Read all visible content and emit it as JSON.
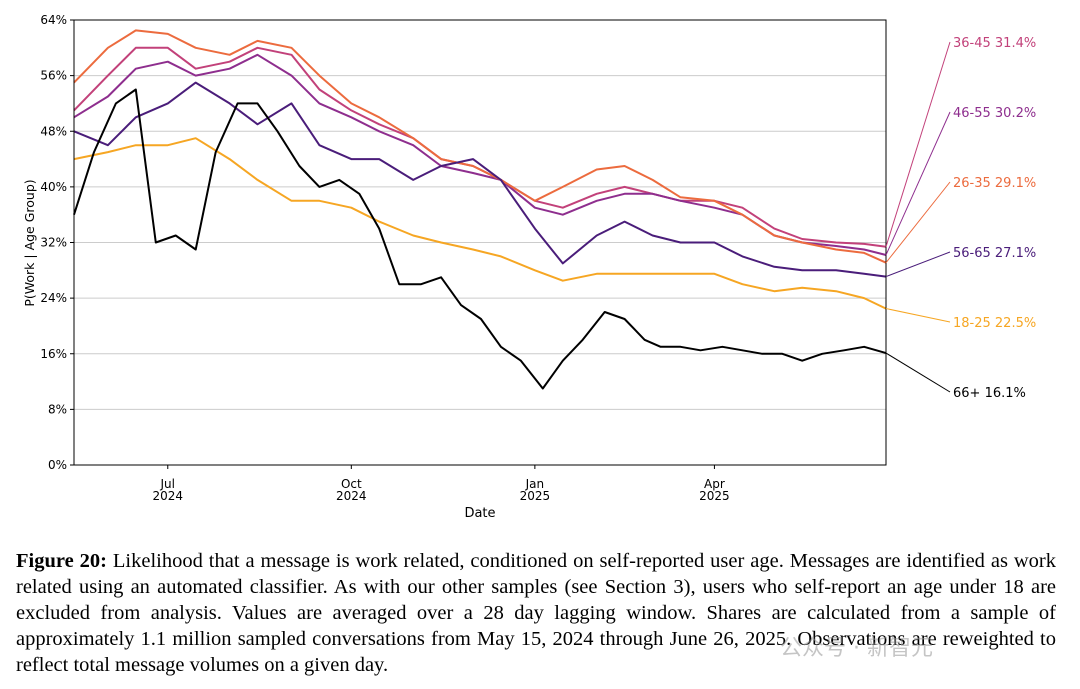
{
  "chart_data": {
    "type": "line",
    "xlabel": "Date",
    "ylabel": "P(Work | Age Group)",
    "ylim": [
      0,
      0.64
    ],
    "x_range": [
      "2024-05-15",
      "2025-06-26"
    ],
    "y_ticks": [
      0,
      0.08,
      0.16,
      0.24,
      0.32,
      0.4,
      0.48,
      0.56,
      0.64
    ],
    "y_tick_labels": [
      "0%",
      "8%",
      "16%",
      "24%",
      "32%",
      "40%",
      "48%",
      "56%",
      "64%"
    ],
    "x_ticks": [
      {
        "date": "2024-07-01",
        "line1": "Jul",
        "line2": "2024"
      },
      {
        "date": "2024-10-01",
        "line1": "Oct",
        "line2": "2024"
      },
      {
        "date": "2025-01-01",
        "line1": "Jan",
        "line2": "2025"
      },
      {
        "date": "2025-04-01",
        "line1": "Apr",
        "line2": "2025"
      }
    ],
    "grid": "horizontal",
    "legend": "right",
    "series": [
      {
        "name": "36-45",
        "end_label": "31.4%",
        "color": "#c2417a",
        "x": [
          "2024-05-15",
          "2024-06-01",
          "2024-06-15",
          "2024-07-01",
          "2024-07-15",
          "2024-08-01",
          "2024-08-15",
          "2024-09-01",
          "2024-09-15",
          "2024-10-01",
          "2024-10-15",
          "2024-11-01",
          "2024-11-15",
          "2024-12-01",
          "2024-12-15",
          "2025-01-01",
          "2025-01-15",
          "2025-02-01",
          "2025-02-15",
          "2025-03-01",
          "2025-03-15",
          "2025-04-01",
          "2025-04-15",
          "2025-05-01",
          "2025-05-15",
          "2025-06-01",
          "2025-06-15",
          "2025-06-26"
        ],
        "y": [
          0.51,
          0.56,
          0.6,
          0.6,
          0.57,
          0.58,
          0.6,
          0.59,
          0.54,
          0.51,
          0.49,
          0.47,
          0.44,
          0.43,
          0.41,
          0.38,
          0.37,
          0.39,
          0.4,
          0.39,
          0.38,
          0.38,
          0.37,
          0.34,
          0.325,
          0.32,
          0.318,
          0.314
        ]
      },
      {
        "name": "46-55",
        "end_label": "30.2%",
        "color": "#8e2e8e",
        "x": [
          "2024-05-15",
          "2024-06-01",
          "2024-06-15",
          "2024-07-01",
          "2024-07-15",
          "2024-08-01",
          "2024-08-15",
          "2024-09-01",
          "2024-09-15",
          "2024-10-01",
          "2024-10-15",
          "2024-11-01",
          "2024-11-15",
          "2024-12-01",
          "2024-12-15",
          "2025-01-01",
          "2025-01-15",
          "2025-02-01",
          "2025-02-15",
          "2025-03-01",
          "2025-03-15",
          "2025-04-01",
          "2025-04-15",
          "2025-05-01",
          "2025-05-15",
          "2025-06-01",
          "2025-06-15",
          "2025-06-26"
        ],
        "y": [
          0.5,
          0.53,
          0.57,
          0.58,
          0.56,
          0.57,
          0.59,
          0.56,
          0.52,
          0.5,
          0.48,
          0.46,
          0.43,
          0.42,
          0.41,
          0.37,
          0.36,
          0.38,
          0.39,
          0.39,
          0.38,
          0.37,
          0.36,
          0.33,
          0.32,
          0.315,
          0.31,
          0.302
        ]
      },
      {
        "name": "26-35",
        "end_label": "29.1%",
        "color": "#ec6b3e",
        "x": [
          "2024-05-15",
          "2024-06-01",
          "2024-06-15",
          "2024-07-01",
          "2024-07-15",
          "2024-08-01",
          "2024-08-15",
          "2024-09-01",
          "2024-09-15",
          "2024-10-01",
          "2024-10-15",
          "2024-11-01",
          "2024-11-15",
          "2024-12-01",
          "2024-12-15",
          "2025-01-01",
          "2025-01-15",
          "2025-02-01",
          "2025-02-15",
          "2025-03-01",
          "2025-03-15",
          "2025-04-01",
          "2025-04-15",
          "2025-05-01",
          "2025-05-15",
          "2025-06-01",
          "2025-06-15",
          "2025-06-26"
        ],
        "y": [
          0.55,
          0.6,
          0.625,
          0.62,
          0.6,
          0.59,
          0.61,
          0.6,
          0.56,
          0.52,
          0.5,
          0.47,
          0.44,
          0.43,
          0.41,
          0.38,
          0.4,
          0.425,
          0.43,
          0.41,
          0.385,
          0.38,
          0.36,
          0.33,
          0.32,
          0.31,
          0.305,
          0.291
        ]
      },
      {
        "name": "56-65",
        "end_label": "27.1%",
        "color": "#4a1d7a",
        "x": [
          "2024-05-15",
          "2024-06-01",
          "2024-06-15",
          "2024-07-01",
          "2024-07-15",
          "2024-08-01",
          "2024-08-15",
          "2024-09-01",
          "2024-09-15",
          "2024-10-01",
          "2024-10-15",
          "2024-11-01",
          "2024-11-15",
          "2024-12-01",
          "2024-12-15",
          "2025-01-01",
          "2025-01-15",
          "2025-02-01",
          "2025-02-15",
          "2025-03-01",
          "2025-03-15",
          "2025-04-01",
          "2025-04-15",
          "2025-05-01",
          "2025-05-15",
          "2025-06-01",
          "2025-06-15",
          "2025-06-26"
        ],
        "y": [
          0.48,
          0.46,
          0.5,
          0.52,
          0.55,
          0.52,
          0.49,
          0.52,
          0.46,
          0.44,
          0.44,
          0.41,
          0.43,
          0.44,
          0.41,
          0.34,
          0.29,
          0.33,
          0.35,
          0.33,
          0.32,
          0.32,
          0.3,
          0.285,
          0.28,
          0.28,
          0.275,
          0.271
        ]
      },
      {
        "name": "18-25",
        "end_label": "22.5%",
        "color": "#f6a623",
        "x": [
          "2024-05-15",
          "2024-06-01",
          "2024-06-15",
          "2024-07-01",
          "2024-07-15",
          "2024-08-01",
          "2024-08-15",
          "2024-09-01",
          "2024-09-15",
          "2024-10-01",
          "2024-10-15",
          "2024-11-01",
          "2024-11-15",
          "2024-12-01",
          "2024-12-15",
          "2025-01-01",
          "2025-01-15",
          "2025-02-01",
          "2025-02-15",
          "2025-03-01",
          "2025-03-15",
          "2025-04-01",
          "2025-04-15",
          "2025-05-01",
          "2025-05-15",
          "2025-06-01",
          "2025-06-15",
          "2025-06-26"
        ],
        "y": [
          0.44,
          0.45,
          0.46,
          0.46,
          0.47,
          0.44,
          0.41,
          0.38,
          0.38,
          0.37,
          0.35,
          0.33,
          0.32,
          0.31,
          0.3,
          0.28,
          0.265,
          0.275,
          0.275,
          0.275,
          0.275,
          0.275,
          0.26,
          0.25,
          0.255,
          0.25,
          0.24,
          0.225
        ]
      },
      {
        "name": "66+",
        "end_label": "16.1%",
        "color": "#000000",
        "x": [
          "2024-05-15",
          "2024-05-25",
          "2024-06-05",
          "2024-06-15",
          "2024-06-25",
          "2024-07-05",
          "2024-07-15",
          "2024-07-25",
          "2024-08-05",
          "2024-08-15",
          "2024-08-25",
          "2024-09-05",
          "2024-09-15",
          "2024-09-25",
          "2024-10-05",
          "2024-10-15",
          "2024-10-25",
          "2024-11-05",
          "2024-11-15",
          "2024-11-25",
          "2024-12-05",
          "2024-12-15",
          "2024-12-25",
          "2025-01-05",
          "2025-01-15",
          "2025-01-25",
          "2025-02-05",
          "2025-02-15",
          "2025-02-25",
          "2025-03-05",
          "2025-03-15",
          "2025-03-25",
          "2025-04-05",
          "2025-04-15",
          "2025-04-25",
          "2025-05-05",
          "2025-05-15",
          "2025-05-25",
          "2025-06-05",
          "2025-06-15",
          "2025-06-26"
        ],
        "y": [
          0.36,
          0.45,
          0.52,
          0.54,
          0.32,
          0.33,
          0.31,
          0.45,
          0.52,
          0.52,
          0.48,
          0.43,
          0.4,
          0.41,
          0.39,
          0.34,
          0.26,
          0.26,
          0.27,
          0.23,
          0.21,
          0.17,
          0.15,
          0.11,
          0.15,
          0.18,
          0.22,
          0.21,
          0.18,
          0.17,
          0.17,
          0.165,
          0.17,
          0.165,
          0.16,
          0.16,
          0.15,
          0.16,
          0.165,
          0.17,
          0.161
        ]
      }
    ]
  },
  "caption": {
    "label": "Figure 20:",
    "text": "Likelihood that a message is work related, conditioned on self-reported user age. Messages are identified as work related using an automated classifier. As with our other samples (see Section 3), users who self-report an age under 18 are excluded from analysis. Values are averaged over a 28 day lagging window. Shares are calculated from a sample of approximately 1.1 million sampled conversations from May 15, 2024 through June 26, 2025. Observations are reweighted to reflect total message volumes on a given day."
  },
  "watermark": "公众号 · 新智元"
}
